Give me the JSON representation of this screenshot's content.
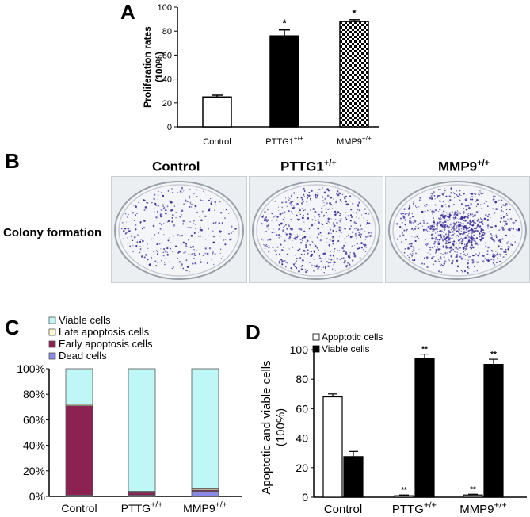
{
  "colors": {
    "accent": "#000000",
    "late": "#fffacd",
    "early": "#8b2252",
    "dead": "#8a8ae6",
    "viable": "#bff7f7",
    "colonyStain": "#3b2a9a"
  },
  "panels": {
    "a": {
      "letter": "A"
    },
    "b": {
      "letter": "B",
      "row_label": "Colony formation",
      "headers": [
        {
          "text": "Control",
          "sup": ""
        },
        {
          "text": "PTTG1",
          "sup": "+/+"
        },
        {
          "text": "MMP9",
          "sup": "+/+"
        }
      ]
    },
    "c": {
      "letter": "C"
    },
    "d": {
      "letter": "D"
    }
  },
  "chart_data": [
    {
      "id": "A",
      "type": "bar",
      "categories": [
        {
          "label": "Control",
          "sup": ""
        },
        {
          "label": "PTTG1",
          "sup": "+/+"
        },
        {
          "label": "MMP9",
          "sup": "+/+"
        }
      ],
      "values": [
        25,
        76,
        88
      ],
      "errors": [
        1.5,
        5,
        1.5
      ],
      "significance": [
        "",
        "*",
        "*"
      ],
      "fills": [
        "white",
        "black",
        "checker"
      ],
      "ylabel_lines": [
        "Proliferation rates",
        "(100%)"
      ],
      "ylim": [
        0,
        100
      ],
      "yticks": [
        0,
        20,
        40,
        60,
        80,
        100
      ]
    },
    {
      "id": "C",
      "type": "bar",
      "stacked": true,
      "categories": [
        {
          "label": "Control",
          "sup": ""
        },
        {
          "label": "PTTG",
          "sup": "+/+"
        },
        {
          "label": "MMP9",
          "sup": "+/+"
        }
      ],
      "series": [
        {
          "name": "Dead cells",
          "color": "#8a8ae6",
          "values": [
            1,
            1,
            4
          ]
        },
        {
          "name": "Early apoptosis cells",
          "color": "#8b2252",
          "values": [
            70,
            2,
            1
          ]
        },
        {
          "name": "Late apoptosis cells",
          "color": "#fffacd",
          "values": [
            1,
            1,
            1
          ]
        },
        {
          "name": "Viable cells",
          "color": "#bff7f7",
          "values": [
            28,
            96,
            94
          ]
        }
      ],
      "legend_order": [
        "Viable cells",
        "Late apoptosis cells",
        "Early apoptosis cells",
        "Dead cells"
      ],
      "ylim": [
        0,
        100
      ],
      "yticks": [
        "0%",
        "20%",
        "40%",
        "60%",
        "80%",
        "100%"
      ]
    },
    {
      "id": "D",
      "type": "bar",
      "categories": [
        {
          "label": "Control",
          "sup": ""
        },
        {
          "label": "PTTG",
          "sup": "+/+"
        },
        {
          "label": "MMP9",
          "sup": "+/+"
        }
      ],
      "series": [
        {
          "name": "Apoptotic cells",
          "color": "#ffffff",
          "values": [
            68,
            1,
            1.5
          ],
          "errors": [
            2,
            0.5,
            0.5
          ],
          "significance": [
            "",
            "**",
            "**"
          ]
        },
        {
          "name": "Viable cells",
          "color": "#000000",
          "values": [
            27.5,
            94,
            90
          ],
          "errors": [
            3.5,
            3,
            3.5
          ],
          "significance": [
            "",
            "**",
            "**"
          ]
        }
      ],
      "ylabel_lines": [
        "Apoptotic and  viable cells",
        "(100%)"
      ],
      "ylim": [
        0,
        100
      ],
      "yticks": [
        0,
        20,
        40,
        60,
        80,
        100
      ]
    }
  ]
}
